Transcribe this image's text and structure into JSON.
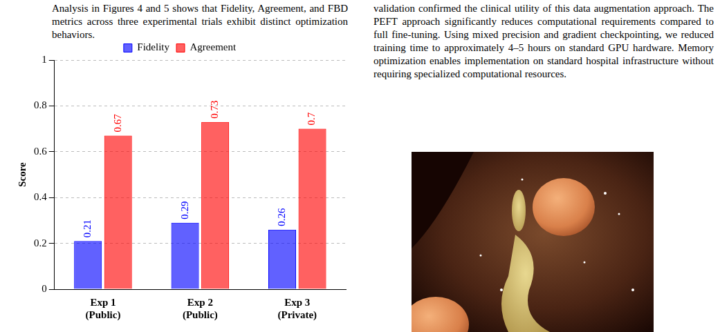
{
  "left_text": "Analysis in Figures 4 and 5 shows that Fidelity, Agreement, and FBD metrics across three experimental trials exhibit distinct optimization behaviors.",
  "right_text": "validation confirmed the clinical utility of this data augmentation approach. The PEFT approach significantly reduces computational requirements compared to full fine-tuning. Using mixed precision and gradient checkpointing, we reduced training time to approximately 4–5 hours on standard GPU hardware. Memory optimization enables implementation on standard hospital infrastructure without requiring specialized computational resources.",
  "chart_data": {
    "type": "bar",
    "categories": [
      "Exp 1 (Public)",
      "Exp 2 (Public)",
      "Exp 3 (Private)"
    ],
    "series": [
      {
        "name": "Fidelity",
        "color": "#0000ff",
        "values": [
          0.21,
          0.29,
          0.26
        ]
      },
      {
        "name": "Agreement",
        "color": "#ff0000",
        "values": [
          0.67,
          0.73,
          0.7
        ]
      }
    ],
    "y_label": "Score",
    "ylim": [
      0,
      1
    ],
    "yticks": [
      0,
      0.2,
      0.4,
      0.6,
      0.8,
      1
    ],
    "grid": true,
    "legend": "top",
    "data_labels": true
  }
}
